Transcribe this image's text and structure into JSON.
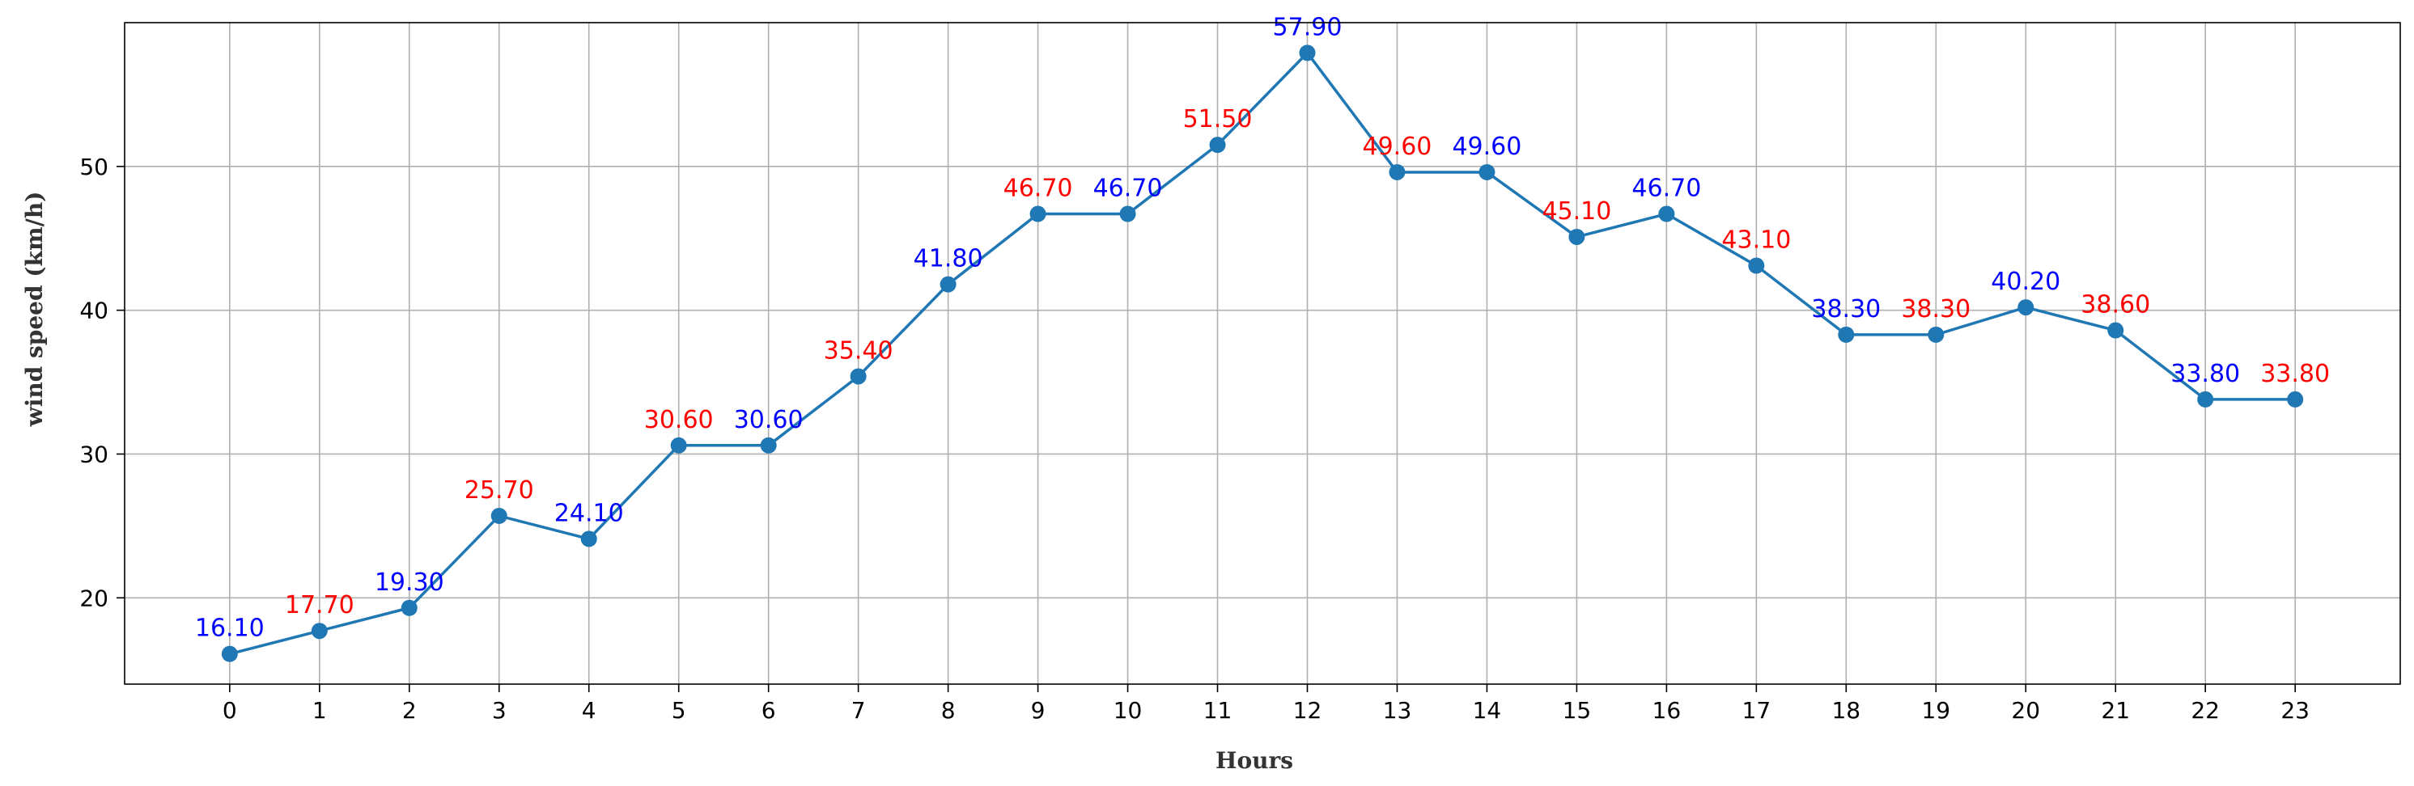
{
  "chart_data": {
    "type": "line",
    "title": "",
    "xlabel": "Hours",
    "ylabel": "wind speed (km/h)",
    "x": [
      0,
      1,
      2,
      3,
      4,
      5,
      6,
      7,
      8,
      9,
      10,
      11,
      12,
      13,
      14,
      15,
      16,
      17,
      18,
      19,
      20,
      21,
      22,
      23
    ],
    "series": [
      {
        "values": [
          16.1,
          17.7,
          19.3,
          25.7,
          24.1,
          30.6,
          30.6,
          35.4,
          41.8,
          46.7,
          46.7,
          51.5,
          57.9,
          49.6,
          49.6,
          45.1,
          46.7,
          43.1,
          38.3,
          38.3,
          40.2,
          38.6,
          33.8,
          33.8
        ],
        "color": "#1f77b4",
        "marker": "circle"
      }
    ],
    "data_labels": [
      "16.10",
      "17.70",
      "19.30",
      "25.70",
      "24.10",
      "30.60",
      "30.60",
      "35.40",
      "41.80",
      "46.70",
      "46.70",
      "51.50",
      "57.90",
      "49.60",
      "49.60",
      "45.10",
      "46.70",
      "43.10",
      "38.30",
      "38.30",
      "40.20",
      "38.60",
      "33.80",
      "33.80"
    ],
    "label_colors": [
      "#0000ff",
      "#ff0000",
      "#0000ff",
      "#ff0000",
      "#0000ff",
      "#ff0000",
      "#0000ff",
      "#ff0000",
      "#0000ff",
      "#ff0000",
      "#0000ff",
      "#ff0000",
      "#0000ff",
      "#ff0000",
      "#0000ff",
      "#ff0000",
      "#0000ff",
      "#ff0000",
      "#0000ff",
      "#ff0000",
      "#0000ff",
      "#ff0000",
      "#0000ff",
      "#ff0000"
    ],
    "xticks": [
      "0",
      "1",
      "2",
      "3",
      "4",
      "5",
      "6",
      "7",
      "8",
      "9",
      "10",
      "11",
      "12",
      "13",
      "14",
      "15",
      "16",
      "17",
      "18",
      "19",
      "20",
      "21",
      "22",
      "23"
    ],
    "yticks": [
      20,
      30,
      40,
      50
    ],
    "ytick_labels": [
      "20",
      "30",
      "40",
      "50"
    ],
    "xlim": [
      -1.17,
      24.17
    ],
    "ylim": [
      14.0,
      60.0
    ],
    "grid": true,
    "legend": "none",
    "colors": {
      "line": "#1f77b4",
      "grid": "#b0b0b0",
      "label_even": "#0000ff",
      "label_odd": "#ff0000"
    }
  }
}
